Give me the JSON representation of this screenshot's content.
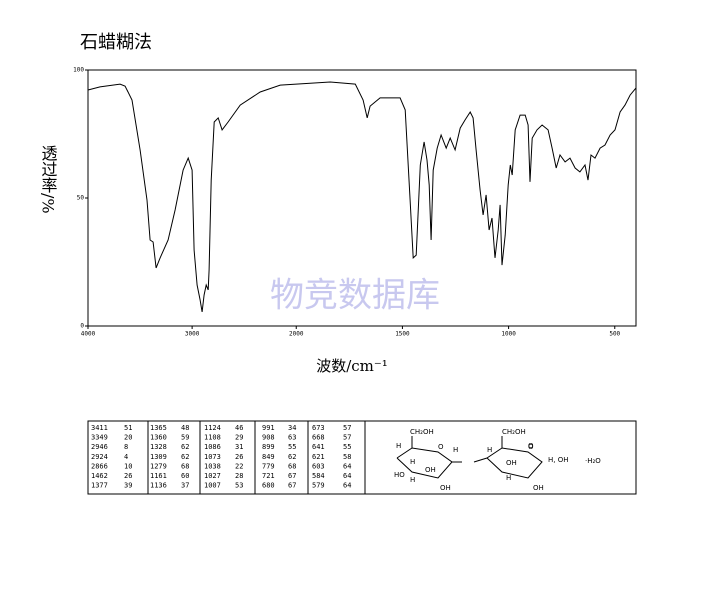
{
  "chart_data": {
    "type": "line",
    "title": "石蜡糊法",
    "x_label": "波数/cm⁻¹",
    "y_label": "透过率/%",
    "watermark": "物竞数据库",
    "color": "#000000",
    "xlim": [
      4000,
      400
    ],
    "xscale_break": 2000,
    "xticks": [
      4000,
      3000,
      2000,
      1500,
      1000,
      500
    ],
    "ylim": [
      0,
      100
    ],
    "yticks": [
      0,
      50,
      100
    ],
    "x": [
      4000,
      3885,
      3692,
      3644,
      3577,
      3500,
      3433,
      3404,
      3375,
      3346,
      3308,
      3231,
      3163,
      3087,
      3038,
      3000,
      2981,
      2952,
      2923,
      2904,
      2885,
      2865,
      2846,
      2837,
      2817,
      2788,
      2750,
      2712,
      2654,
      2538,
      2346,
      2154,
      2000,
      1840,
      1722,
      1685,
      1666,
      1652,
      1605,
      1511,
      1487,
      1464,
      1449,
      1435,
      1416,
      1398,
      1384,
      1374,
      1365,
      1355,
      1336,
      1318,
      1294,
      1275,
      1252,
      1228,
      1205,
      1181,
      1167,
      1153,
      1134,
      1120,
      1106,
      1092,
      1078,
      1064,
      1049,
      1040,
      1031,
      1016,
      1002,
      992,
      983,
      969,
      946,
      922,
      908,
      899,
      889,
      866,
      842,
      814,
      795,
      776,
      758,
      734,
      711,
      687,
      664,
      640,
      626,
      612,
      593,
      569,
      546,
      522,
      499,
      475,
      452,
      428,
      400
    ],
    "values": [
      92.2,
      93.4,
      94.5,
      93.7,
      88.3,
      68.8,
      49.2,
      33.6,
      32.8,
      22.7,
      26.6,
      33.6,
      45.3,
      60.9,
      65.6,
      60.9,
      29.7,
      16.0,
      10.2,
      5.5,
      12.1,
      16.0,
      14.1,
      21.9,
      57.0,
      79.7,
      81.3,
      76.6,
      79.7,
      86.3,
      91.4,
      94.1,
      94.5,
      95.3,
      94.5,
      88.3,
      81.3,
      85.9,
      89.1,
      89.1,
      84.4,
      49.2,
      26.6,
      27.7,
      62.9,
      71.9,
      64.8,
      55.1,
      33.6,
      60.9,
      69.5,
      74.6,
      69.5,
      73.4,
      68.8,
      77.3,
      80.5,
      83.6,
      81.3,
      68.8,
      53.1,
      43.4,
      51.2,
      37.5,
      42.2,
      26.6,
      37.5,
      47.3,
      23.8,
      35.5,
      55.1,
      62.9,
      59.0,
      76.6,
      82.4,
      82.4,
      78.5,
      56.3,
      73.4,
      76.6,
      78.5,
      76.6,
      69.5,
      61.7,
      66.8,
      64.1,
      65.6,
      61.7,
      60.2,
      62.9,
      57.0,
      66.8,
      65.6,
      69.5,
      70.7,
      74.6,
      76.6,
      83.6,
      86.3,
      90.2,
      93.0
    ]
  },
  "peak_table": {
    "columns": [
      [
        [
          "3411",
          "51"
        ],
        [
          "3349",
          "20"
        ],
        [
          "2946",
          "8"
        ],
        [
          "2924",
          "4"
        ],
        [
          "2866",
          "10"
        ],
        [
          "1462",
          "26"
        ],
        [
          "1377",
          "39"
        ]
      ],
      [
        [
          "1365",
          "48"
        ],
        [
          "1360",
          "59"
        ],
        [
          "1328",
          "62"
        ],
        [
          "1309",
          "62"
        ],
        [
          "1279",
          "68"
        ],
        [
          "1161",
          "60"
        ],
        [
          "1136",
          "37"
        ]
      ],
      [
        [
          "1124",
          "46"
        ],
        [
          "1108",
          "29"
        ],
        [
          "1086",
          "31"
        ],
        [
          "1073",
          "26"
        ],
        [
          "1038",
          "22"
        ],
        [
          "1027",
          "28"
        ],
        [
          "1007",
          "53"
        ]
      ],
      [
        [
          "991",
          "34"
        ],
        [
          "908",
          "63"
        ],
        [
          "899",
          "55"
        ],
        [
          "849",
          "62"
        ],
        [
          "779",
          "68"
        ],
        [
          "721",
          "67"
        ],
        [
          "680",
          "67"
        ]
      ],
      [
        [
          "673",
          "57"
        ],
        [
          "668",
          "57"
        ],
        [
          "641",
          "55"
        ],
        [
          "621",
          "58"
        ],
        [
          "603",
          "64"
        ],
        [
          "584",
          "64"
        ],
        [
          "579",
          "64"
        ]
      ]
    ]
  },
  "structure": {
    "labels": [
      "CH₂OH",
      "O",
      "H",
      "H",
      "OH",
      "H",
      "HO",
      "H",
      "OH",
      "O",
      "CH₂OH",
      "O",
      "OH",
      "H",
      "H, OH",
      "H",
      "OH",
      "·H₂O"
    ]
  }
}
